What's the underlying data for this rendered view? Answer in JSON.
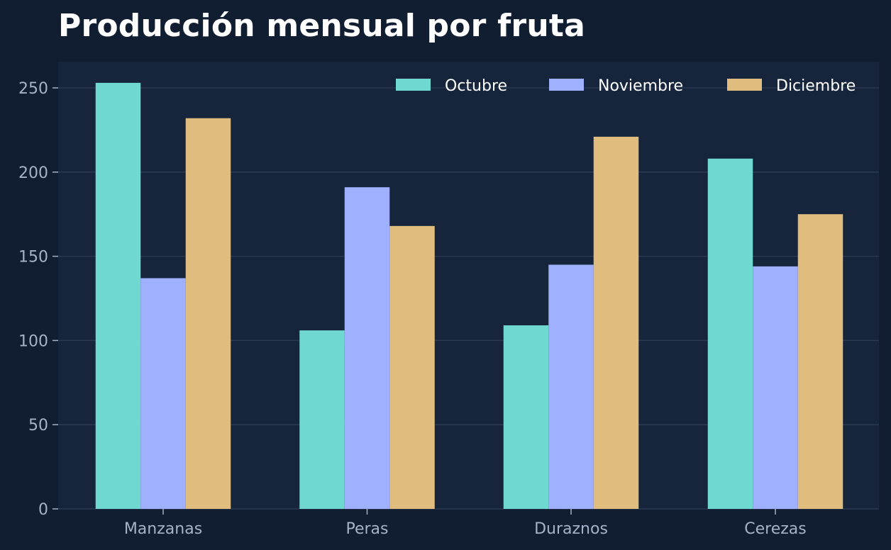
{
  "chart_data": {
    "type": "bar",
    "title": "Producción mensual por fruta",
    "xlabel": "",
    "ylabel": "",
    "categories": [
      "Manzanas",
      "Peras",
      "Duraznos",
      "Cerezas"
    ],
    "series": [
      {
        "name": "Octubre",
        "values": [
          253,
          106,
          109,
          208
        ],
        "color": "#6fd8d0"
      },
      {
        "name": "Noviembre",
        "values": [
          137,
          191,
          145,
          144
        ],
        "color": "#9fb0ff"
      },
      {
        "name": "Diciembre",
        "values": [
          232,
          168,
          221,
          175
        ],
        "color": "#e0bc7e"
      }
    ],
    "ylim": [
      0,
      265
    ],
    "yticks": [
      0,
      50,
      100,
      150,
      200,
      250
    ],
    "grid": true,
    "legend_position": "top-right",
    "colors": {
      "background": "#111d30",
      "plot_background": "#16253b",
      "grid": "#2a3a52",
      "tick_text": "#a4b3c9",
      "title_text": "#ffffff"
    }
  }
}
